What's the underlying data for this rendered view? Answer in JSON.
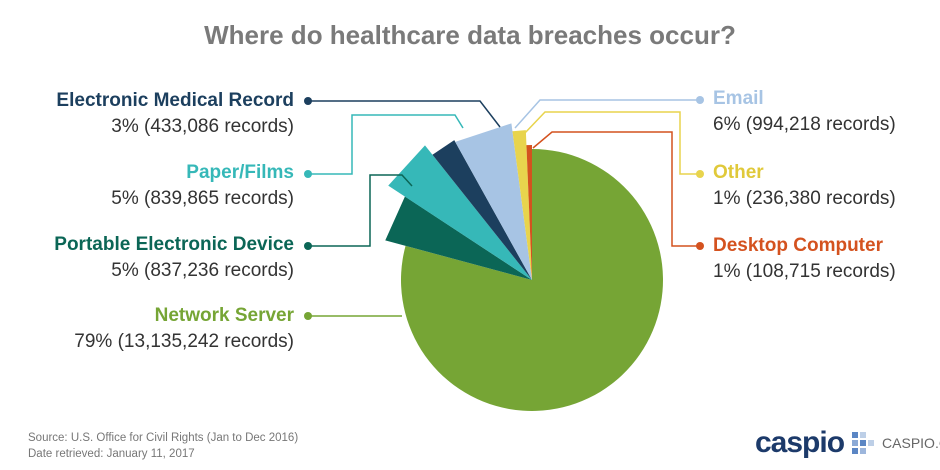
{
  "chart_data": {
    "type": "pie",
    "title": "Where do healthcare data breaches occur?",
    "slices": [
      {
        "name": "Network Server",
        "percent": "79%",
        "records": 13135242,
        "records_label": "(13,135,242 records)",
        "color": "#76a535",
        "side": "left"
      },
      {
        "name": "Portable Electronic Device",
        "percent": "5%",
        "records": 837236,
        "records_label": "(837,236 records)",
        "color": "#0b6656",
        "side": "left"
      },
      {
        "name": "Paper/Films",
        "percent": "5%",
        "records": 839865,
        "records_label": "(839,865 records)",
        "color": "#36b8b8",
        "side": "left"
      },
      {
        "name": "Electronic Medical Record",
        "percent": "3%",
        "records": 433086,
        "records_label": "(433,086 records)",
        "color": "#1c3f5e",
        "side": "left"
      },
      {
        "name": "Email",
        "percent": "6%",
        "records": 994218,
        "records_label": "(994,218 records)",
        "color": "#a7c4e4",
        "side": "right"
      },
      {
        "name": "Other",
        "percent": "1%",
        "records": 236380,
        "records_label": "(236,380 records)",
        "color": "#e8d44d",
        "side": "right"
      },
      {
        "name": "Desktop Computer",
        "percent": "1%",
        "records": 108715,
        "records_label": "(108,715 records)",
        "color": "#d4521f",
        "side": "right"
      }
    ]
  },
  "footer": {
    "source": "Source: U.S. Office for Civil Rights (Jan to Dec 2016)",
    "retrieved": "Date retrieved: January 11, 2017",
    "logo_text": "caspio",
    "logo_url": "CASPIO.COM"
  }
}
